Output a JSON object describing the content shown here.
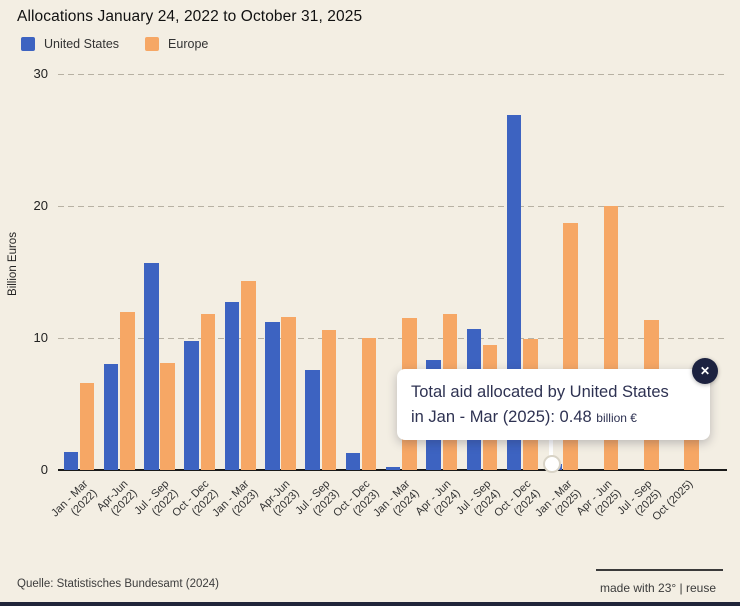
{
  "title": "Allocations January 24, 2022 to October 31, 2025",
  "legend": [
    {
      "label": "United States",
      "color": "#3d63c1"
    },
    {
      "label": "Europe",
      "color": "#f6a765"
    }
  ],
  "chart_data": {
    "type": "bar",
    "title": "Allocations January 24, 2022 to October 31, 2025",
    "ylabel": "Billion Euros",
    "ylim": [
      0,
      30
    ],
    "yticks": [
      0,
      10,
      20,
      30
    ],
    "grid": "dashed horizontal",
    "legend_position": "top-left",
    "categories": [
      "Jan - Mar (2022)",
      "Apr-Jun (2022)",
      "Jul - Sep (2022)",
      "Oct - Dec (2022)",
      "Jan - Mar (2023)",
      "Apr-Jun (2023)",
      "Jul - Sep (2023)",
      "Oct - Dec (2023)",
      "Jan - Mar (2024)",
      "Apr - Jun (2024)",
      "Jul - Sep (2024)",
      "Oct - Dec (2024)",
      "Jan - Mar (2025)",
      "Apr - Jun (2025)",
      "Jul - Sep (2025)",
      "Oct (2025)"
    ],
    "category_lines": [
      [
        "Jan - Mar",
        "(2022)"
      ],
      [
        "Apr-Jun",
        "(2022)"
      ],
      [
        "Jul - Sep",
        "(2022)"
      ],
      [
        "Oct - Dec",
        "(2022)"
      ],
      [
        "Jan - Mar",
        "(2023)"
      ],
      [
        "Apr-Jun",
        "(2023)"
      ],
      [
        "Jul - Sep",
        "(2023)"
      ],
      [
        "Oct - Dec",
        "(2023)"
      ],
      [
        "Jan - Mar",
        "(2024)"
      ],
      [
        "Apr - Jun",
        "(2024)"
      ],
      [
        "Jul - Sep",
        "(2024)"
      ],
      [
        "Oct - Dec",
        "(2024)"
      ],
      [
        "Jan - Mar",
        "(2025)"
      ],
      [
        "Apr - Jun",
        "(2025)"
      ],
      [
        "Jul - Sep",
        "(2025)"
      ],
      [
        "Oct (2025)"
      ]
    ],
    "series": [
      {
        "name": "United States",
        "color": "#3d63c1",
        "values": [
          1.4,
          8.0,
          15.7,
          9.8,
          12.7,
          11.2,
          7.6,
          1.3,
          0.2,
          8.3,
          10.7,
          26.9,
          0.48,
          0,
          0,
          0
        ]
      },
      {
        "name": "Europe",
        "color": "#f6a765",
        "values": [
          6.6,
          12.0,
          8.1,
          11.8,
          14.3,
          11.6,
          10.6,
          10.0,
          11.5,
          11.8,
          9.5,
          9.9,
          18.7,
          20.0,
          11.4,
          6.0
        ]
      }
    ]
  },
  "tooltip": {
    "line1": "Total aid allocated by United States",
    "line2": "in Jan - Mar (2025): 0.48",
    "unit": "billion €",
    "close_icon": "✕"
  },
  "footer": {
    "source": "Quelle: Statistisches Bundesamt (2024)",
    "credit": "made with 23° | reuse"
  }
}
